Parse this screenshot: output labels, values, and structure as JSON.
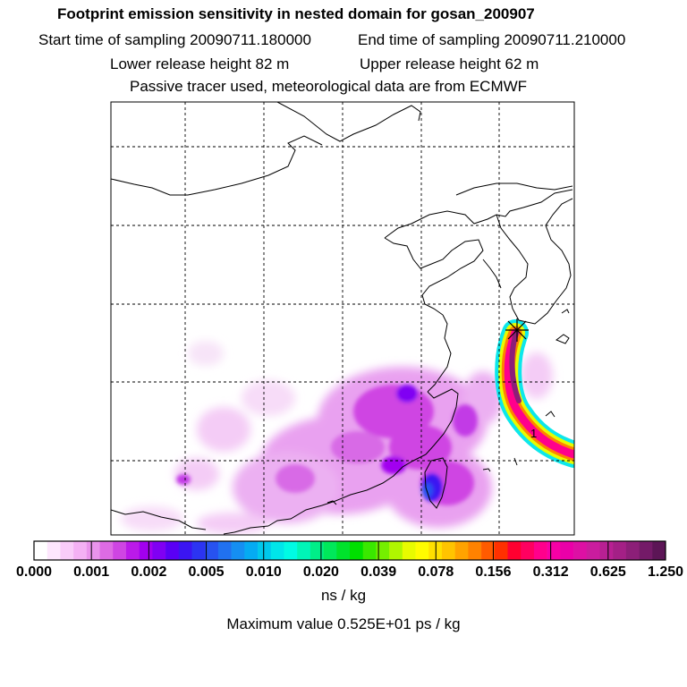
{
  "header": {
    "title": "Footprint emission sensitivity in nested domain for gosan_200907",
    "start_label": "Start time of sampling 20090711.180000",
    "end_label": "End time of sampling 20090711.210000",
    "lower_label": "Lower release height   82 m",
    "upper_label": "Upper release height   62 m",
    "info_line": "Passive tracer used, meteorological data are from ECMWF"
  },
  "chart_data": {
    "type": "heatmap",
    "title": "Footprint emission sensitivity in nested domain for gosan_200907",
    "station": "gosan",
    "marker_label": "1",
    "grid": true,
    "colorbar": {
      "tick_labels": [
        "0.000",
        "0.001",
        "0.002",
        "0.005",
        "0.010",
        "0.020",
        "0.039",
        "0.078",
        "0.156",
        "0.312",
        "0.625",
        "1.250"
      ],
      "colors": [
        "#ffffff",
        "#fde6fd",
        "#f9ccf9",
        "#f4b1f4",
        "#ea94ec",
        "#de6be4",
        "#cf45e3",
        "#bb1ae9",
        "#a200ef",
        "#8000f3",
        "#5a00f5",
        "#3b15f2",
        "#2c34f2",
        "#2752f0",
        "#2071f0",
        "#158ff2",
        "#05abf2",
        "#00c8ec",
        "#00e6ea",
        "#00fbe4",
        "#00f5b7",
        "#00ee88",
        "#00e85a",
        "#00e22c",
        "#00e000",
        "#3ae800",
        "#75ef00",
        "#b0f600",
        "#e8fb00",
        "#fffc00",
        "#ffe000",
        "#ffc400",
        "#ffa300",
        "#ff8200",
        "#ff5b00",
        "#ff3000",
        "#ff0030",
        "#ff0060",
        "#ff008c",
        "#f700a6",
        "#ea00a8",
        "#dd10a4",
        "#ca1c9e",
        "#b82093",
        "#a42086",
        "#8c1f78",
        "#741a68",
        "#5c1556"
      ],
      "unit": "ns / kg"
    },
    "max_value_label": "Maximum value  0.525E+01 ps / kg"
  }
}
